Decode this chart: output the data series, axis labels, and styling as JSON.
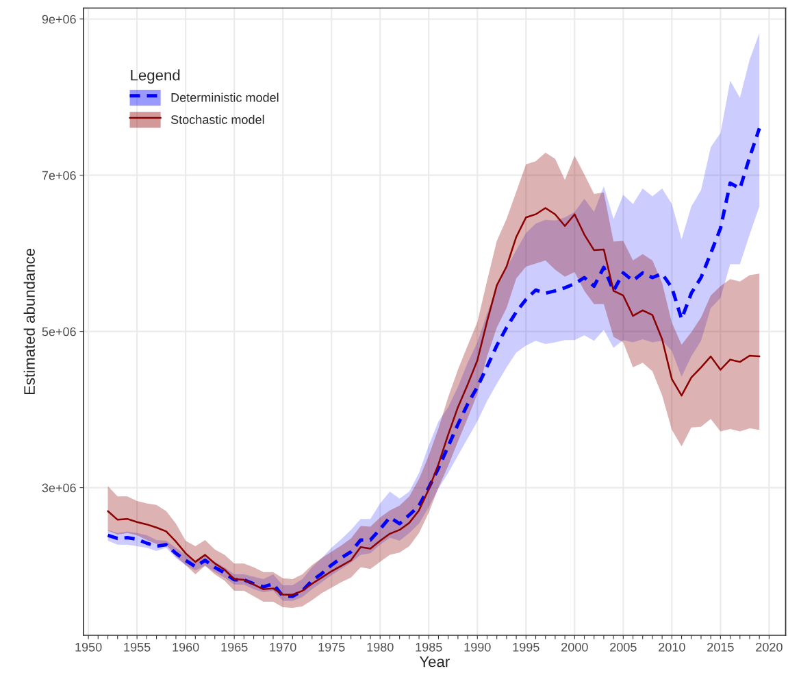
{
  "chart_data": {
    "type": "line",
    "xlabel": "Year",
    "ylabel": "Estimated abundance",
    "legend_title": "Legend",
    "legend": "top left",
    "grid": true,
    "x": [
      1952,
      1953,
      1954,
      1955,
      1956,
      1957,
      1958,
      1959,
      1960,
      1961,
      1962,
      1963,
      1964,
      1965,
      1966,
      1967,
      1968,
      1969,
      1970,
      1971,
      1972,
      1973,
      1974,
      1975,
      1976,
      1977,
      1978,
      1979,
      1980,
      1981,
      1982,
      1983,
      1984,
      1985,
      1986,
      1987,
      1988,
      1989,
      1990,
      1991,
      1992,
      1993,
      1994,
      1995,
      1996,
      1997,
      1998,
      1999,
      2000,
      2001,
      2002,
      2003,
      2004,
      2005,
      2006,
      2007,
      2008,
      2009,
      2010,
      2011,
      2012,
      2013,
      2014,
      2015,
      2016,
      2017,
      2018,
      2019
    ],
    "xlim": [
      1949.5,
      2021.7
    ],
    "xticks": [
      1950,
      {
        "value": 1951,
        "label": null
      },
      {
        "value": 1952,
        "label": null
      },
      {
        "value": 1953,
        "label": null
      },
      {
        "value": 1954,
        "label": null
      },
      1955,
      {
        "value": 1956,
        "label": null
      },
      {
        "value": 1957,
        "label": null
      },
      {
        "value": 1958,
        "label": null
      },
      {
        "value": 1959,
        "label": null
      },
      1960,
      {
        "value": 1961,
        "label": null
      },
      {
        "value": 1962,
        "label": null
      },
      {
        "value": 1963,
        "label": null
      },
      {
        "value": 1964,
        "label": null
      },
      1965,
      {
        "value": 1966,
        "label": null
      },
      {
        "value": 1967,
        "label": null
      },
      {
        "value": 1968,
        "label": null
      },
      {
        "value": 1969,
        "label": null
      },
      1970,
      {
        "value": 1971,
        "label": null
      },
      {
        "value": 1972,
        "label": null
      },
      {
        "value": 1973,
        "label": null
      },
      {
        "value": 1974,
        "label": null
      },
      1975,
      {
        "value": 1976,
        "label": null
      },
      {
        "value": 1977,
        "label": null
      },
      {
        "value": 1978,
        "label": null
      },
      {
        "value": 1979,
        "label": null
      },
      1980,
      {
        "value": 1981,
        "label": null
      },
      {
        "value": 1982,
        "label": null
      },
      {
        "value": 1983,
        "label": null
      },
      {
        "value": 1984,
        "label": null
      },
      1985,
      {
        "value": 1986,
        "label": null
      },
      {
        "value": 1987,
        "label": null
      },
      {
        "value": 1988,
        "label": null
      },
      {
        "value": 1989,
        "label": null
      },
      1990,
      {
        "value": 1991,
        "label": null
      },
      {
        "value": 1992,
        "label": null
      },
      {
        "value": 1993,
        "label": null
      },
      {
        "value": 1994,
        "label": null
      },
      1995,
      {
        "value": 1996,
        "label": null
      },
      {
        "value": 1997,
        "label": null
      },
      {
        "value": 1998,
        "label": null
      },
      {
        "value": 1999,
        "label": null
      },
      2000,
      {
        "value": 2001,
        "label": null
      },
      {
        "value": 2002,
        "label": null
      },
      {
        "value": 2003,
        "label": null
      },
      {
        "value": 2004,
        "label": null
      },
      2005,
      {
        "value": 2006,
        "label": null
      },
      {
        "value": 2007,
        "label": null
      },
      {
        "value": 2008,
        "label": null
      },
      {
        "value": 2009,
        "label": null
      },
      2010,
      {
        "value": 2011,
        "label": null
      },
      {
        "value": 2012,
        "label": null
      },
      {
        "value": 2013,
        "label": null
      },
      {
        "value": 2014,
        "label": null
      },
      2015,
      {
        "value": 2016,
        "label": null
      },
      {
        "value": 2017,
        "label": null
      },
      {
        "value": 2018,
        "label": null
      },
      {
        "value": 2019,
        "label": null
      },
      2020
    ],
    "ylim": [
      1110000,
      9140000
    ],
    "yticks": [
      {
        "value": 3000000,
        "label": "3e+06"
      },
      {
        "value": 5000000,
        "label": "5e+06"
      },
      {
        "value": 7000000,
        "label": "7e+06"
      },
      {
        "value": 9000000,
        "label": "9e+06"
      }
    ],
    "series": [
      {
        "name": "Deterministic model",
        "color": "#0000ff",
        "line_style": "dashed",
        "values": [
          2390000.0,
          2350000.0,
          2360000.0,
          2340000.0,
          2290000.0,
          2250000.0,
          2270000.0,
          2160000.0,
          2070000.0,
          1990000.0,
          2070000.0,
          1980000.0,
          1910000.0,
          1820000.0,
          1820000.0,
          1770000.0,
          1730000.0,
          1770000.0,
          1610000.0,
          1610000.0,
          1680000.0,
          1810000.0,
          1900000.0,
          2010000.0,
          2100000.0,
          2180000.0,
          2330000.0,
          2330000.0,
          2470000.0,
          2620000.0,
          2540000.0,
          2650000.0,
          2770000.0,
          3000000.0,
          3250000.0,
          3530000.0,
          3810000.0,
          4070000.0,
          4290000.0,
          4550000.0,
          4820000.0,
          5050000.0,
          5250000.0,
          5410000.0,
          5530000.0,
          5490000.0,
          5520000.0,
          5560000.0,
          5610000.0,
          5690000.0,
          5580000.0,
          5820000.0,
          5520000.0,
          5750000.0,
          5650000.0,
          5750000.0,
          5690000.0,
          5740000.0,
          5560000.0,
          5160000.0,
          5490000.0,
          5690000.0,
          6000000.0,
          6320000.0,
          6900000.0,
          6830000.0,
          7230000.0,
          7600000.0
        ],
        "upper": [
          2460000.0,
          2420000.0,
          2440000.0,
          2420000.0,
          2390000.0,
          2330000.0,
          2320000.0,
          2230000.0,
          2140000.0,
          2070000.0,
          2140000.0,
          2050000.0,
          1980000.0,
          1890000.0,
          1890000.0,
          1860000.0,
          1830000.0,
          1890000.0,
          1750000.0,
          1750000.0,
          1830000.0,
          1980000.0,
          2100000.0,
          2230000.0,
          2340000.0,
          2460000.0,
          2600000.0,
          2600000.0,
          2800000.0,
          2950000.0,
          2860000.0,
          2950000.0,
          3190000.0,
          3540000.0,
          3850000.0,
          4030000.0,
          4290000.0,
          4600000.0,
          4860000.0,
          5230000.0,
          5560000.0,
          5810000.0,
          6040000.0,
          6260000.0,
          6380000.0,
          6430000.0,
          6420000.0,
          6460000.0,
          6530000.0,
          6700000.0,
          6530000.0,
          6860000.0,
          6440000.0,
          6750000.0,
          6630000.0,
          6830000.0,
          6730000.0,
          6830000.0,
          6630000.0,
          6180000.0,
          6600000.0,
          6810000.0,
          7360000.0,
          7540000.0,
          8210000.0,
          7990000.0,
          8480000.0,
          8820000.0
        ],
        "lower": [
          2320000.0,
          2270000.0,
          2270000.0,
          2250000.0,
          2230000.0,
          2190000.0,
          2230000.0,
          2100000.0,
          2010000.0,
          1940000.0,
          2000000.0,
          1920000.0,
          1850000.0,
          1760000.0,
          1760000.0,
          1700000.0,
          1660000.0,
          1680000.0,
          1550000.0,
          1550000.0,
          1600000.0,
          1700000.0,
          1790000.0,
          1880000.0,
          1960000.0,
          2040000.0,
          2140000.0,
          2160000.0,
          2270000.0,
          2360000.0,
          2320000.0,
          2420000.0,
          2540000.0,
          2750000.0,
          2990000.0,
          3190000.0,
          3410000.0,
          3630000.0,
          3850000.0,
          4110000.0,
          4330000.0,
          4540000.0,
          4730000.0,
          4820000.0,
          4880000.0,
          4840000.0,
          4860000.0,
          4890000.0,
          4890000.0,
          4950000.0,
          4880000.0,
          5020000.0,
          4790000.0,
          4890000.0,
          4860000.0,
          4900000.0,
          4860000.0,
          4880000.0,
          4750000.0,
          4420000.0,
          4680000.0,
          4880000.0,
          5300000.0,
          5430000.0,
          5860000.0,
          5860000.0,
          6240000.0,
          6600000.0
        ]
      },
      {
        "name": "Stochastic model",
        "color": "#8b0000",
        "line_style": "solid",
        "values": [
          2700000.0,
          2590000.0,
          2600000.0,
          2560000.0,
          2530000.0,
          2490000.0,
          2440000.0,
          2310000.0,
          2160000.0,
          2050000.0,
          2140000.0,
          2030000.0,
          1950000.0,
          1830000.0,
          1820000.0,
          1760000.0,
          1700000.0,
          1710000.0,
          1630000.0,
          1630000.0,
          1680000.0,
          1770000.0,
          1850000.0,
          1930000.0,
          2000000.0,
          2070000.0,
          2240000.0,
          2220000.0,
          2320000.0,
          2410000.0,
          2460000.0,
          2550000.0,
          2710000.0,
          2980000.0,
          3300000.0,
          3680000.0,
          4030000.0,
          4320000.0,
          4630000.0,
          5130000.0,
          5590000.0,
          5830000.0,
          6210000.0,
          6460000.0,
          6500000.0,
          6580000.0,
          6500000.0,
          6350000.0,
          6500000.0,
          6240000.0,
          6040000.0,
          6050000.0,
          5520000.0,
          5460000.0,
          5200000.0,
          5270000.0,
          5210000.0,
          4900000.0,
          4390000.0,
          4180000.0,
          4410000.0,
          4540000.0,
          4680000.0,
          4510000.0,
          4640000.0,
          4610000.0,
          4690000.0,
          4680000.0
        ],
        "upper": [
          3020000.0,
          2890000.0,
          2890000.0,
          2830000.0,
          2800000.0,
          2780000.0,
          2700000.0,
          2540000.0,
          2320000.0,
          2250000.0,
          2330000.0,
          2210000.0,
          2140000.0,
          2030000.0,
          2030000.0,
          1980000.0,
          1920000.0,
          1920000.0,
          1840000.0,
          1830000.0,
          1890000.0,
          2010000.0,
          2100000.0,
          2180000.0,
          2260000.0,
          2350000.0,
          2510000.0,
          2500000.0,
          2620000.0,
          2710000.0,
          2770000.0,
          2890000.0,
          3110000.0,
          3410000.0,
          3760000.0,
          4160000.0,
          4510000.0,
          4820000.0,
          5120000.0,
          5650000.0,
          6160000.0,
          6440000.0,
          6790000.0,
          7140000.0,
          7180000.0,
          7290000.0,
          7210000.0,
          6940000.0,
          7250000.0,
          7010000.0,
          6760000.0,
          6780000.0,
          6150000.0,
          6160000.0,
          5910000.0,
          5990000.0,
          5910000.0,
          5620000.0,
          5110000.0,
          4830000.0,
          4990000.0,
          5180000.0,
          5460000.0,
          5580000.0,
          5670000.0,
          5640000.0,
          5720000.0,
          5740000.0
        ],
        "lower": [
          2450000.0,
          2400000.0,
          2420000.0,
          2390000.0,
          2330000.0,
          2280000.0,
          2270000.0,
          2120000.0,
          2010000.0,
          1890000.0,
          2000000.0,
          1890000.0,
          1810000.0,
          1680000.0,
          1680000.0,
          1610000.0,
          1540000.0,
          1540000.0,
          1470000.0,
          1460000.0,
          1480000.0,
          1560000.0,
          1650000.0,
          1720000.0,
          1790000.0,
          1850000.0,
          1980000.0,
          1960000.0,
          2050000.0,
          2140000.0,
          2170000.0,
          2250000.0,
          2420000.0,
          2680000.0,
          3000000.0,
          3280000.0,
          3590000.0,
          3890000.0,
          4200000.0,
          4680000.0,
          5050000.0,
          5300000.0,
          5680000.0,
          5830000.0,
          5870000.0,
          5910000.0,
          5790000.0,
          5700000.0,
          5760000.0,
          5520000.0,
          5350000.0,
          5350000.0,
          4930000.0,
          4860000.0,
          4540000.0,
          4600000.0,
          4490000.0,
          4180000.0,
          3740000.0,
          3530000.0,
          3770000.0,
          3780000.0,
          3880000.0,
          3720000.0,
          3750000.0,
          3720000.0,
          3760000.0,
          3740000.0
        ]
      }
    ]
  }
}
